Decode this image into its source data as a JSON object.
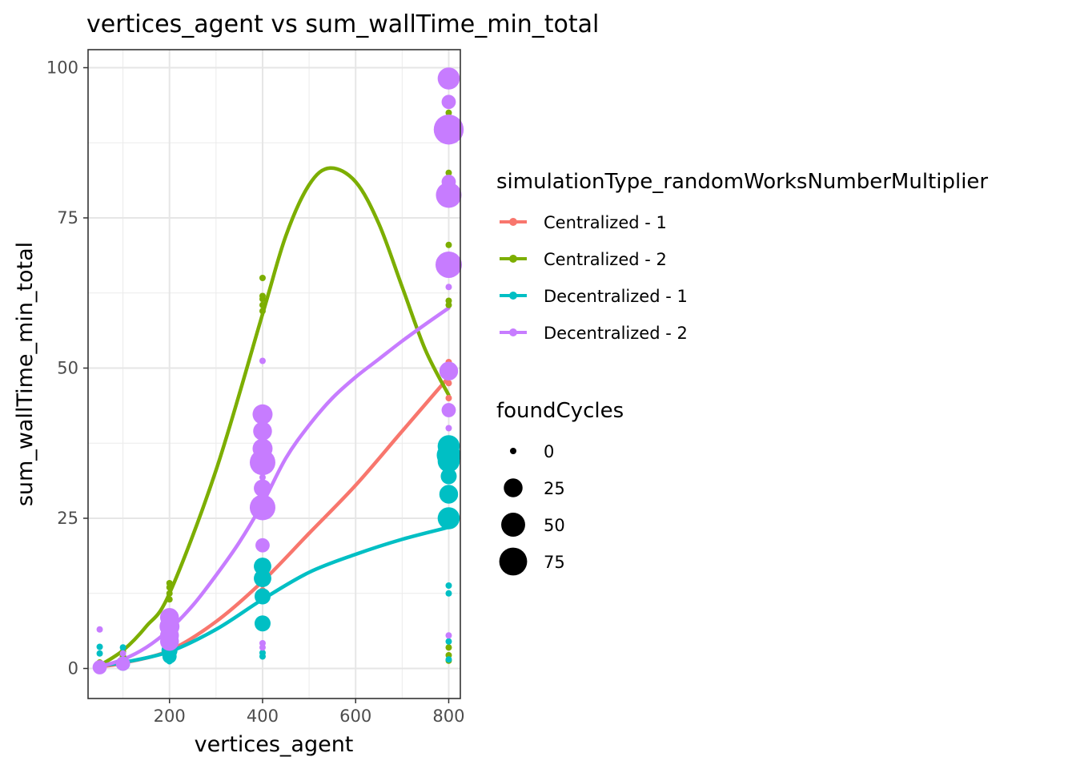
{
  "chart_data": {
    "type": "scatter",
    "title": "vertices_agent  vs  sum_wallTime_min_total",
    "xlabel": "vertices_agent",
    "ylabel": "sum_wallTime_min_total",
    "xlim": [
      25,
      825
    ],
    "ylim": [
      -5,
      103
    ],
    "xticks": [
      200,
      400,
      600,
      800
    ],
    "yticks": [
      0,
      25,
      50,
      75,
      100
    ],
    "grid": true,
    "color_legend": {
      "title": "simulationType_randomWorksNumberMultiplier",
      "placement": "right"
    },
    "size_legend": {
      "title": "foundCycles",
      "values": [
        0,
        25,
        50,
        75
      ]
    },
    "series": [
      {
        "name": "Centralized - 1",
        "color": "#F8766D",
        "points": [
          {
            "x": 50,
            "y": 0.4,
            "s": 0
          },
          {
            "x": 50,
            "y": 0.8,
            "s": 0
          },
          {
            "x": 100,
            "y": 1.5,
            "s": 0
          },
          {
            "x": 100,
            "y": 2.0,
            "s": 0
          },
          {
            "x": 200,
            "y": 2.8,
            "s": 0
          },
          {
            "x": 200,
            "y": 3.5,
            "s": 0
          },
          {
            "x": 200,
            "y": 4.2,
            "s": 0
          },
          {
            "x": 400,
            "y": 13.0,
            "s": 0
          },
          {
            "x": 400,
            "y": 14.0,
            "s": 0
          },
          {
            "x": 400,
            "y": 15.5,
            "s": 0
          },
          {
            "x": 400,
            "y": 16.5,
            "s": 0
          },
          {
            "x": 800,
            "y": 45.0,
            "s": 0
          },
          {
            "x": 800,
            "y": 47.5,
            "s": 0
          },
          {
            "x": 800,
            "y": 49.0,
            "s": 0
          },
          {
            "x": 800,
            "y": 50.0,
            "s": 0
          },
          {
            "x": 800,
            "y": 51.0,
            "s": 0
          }
        ],
        "curve": [
          [
            50,
            0.3
          ],
          [
            100,
            0.9
          ],
          [
            200,
            3.0
          ],
          [
            300,
            7.8
          ],
          [
            400,
            14.5
          ],
          [
            500,
            22.5
          ],
          [
            600,
            30.5
          ],
          [
            700,
            39.5
          ],
          [
            800,
            48.5
          ]
        ]
      },
      {
        "name": "Centralized - 2",
        "color": "#7CAE00",
        "points": [
          {
            "x": 50,
            "y": 0.5,
            "s": 0
          },
          {
            "x": 50,
            "y": 1.0,
            "s": 0
          },
          {
            "x": 100,
            "y": 2.0,
            "s": 0
          },
          {
            "x": 100,
            "y": 2.8,
            "s": 0
          },
          {
            "x": 200,
            "y": 11.5,
            "s": 0
          },
          {
            "x": 200,
            "y": 12.5,
            "s": 0
          },
          {
            "x": 200,
            "y": 13.5,
            "s": 0
          },
          {
            "x": 200,
            "y": 14.2,
            "s": 0
          },
          {
            "x": 400,
            "y": 59.5,
            "s": 0
          },
          {
            "x": 400,
            "y": 60.5,
            "s": 0
          },
          {
            "x": 400,
            "y": 61.5,
            "s": 0
          },
          {
            "x": 400,
            "y": 62.0,
            "s": 0
          },
          {
            "x": 400,
            "y": 65.0,
            "s": 0
          },
          {
            "x": 800,
            "y": 1.3,
            "s": 0
          },
          {
            "x": 800,
            "y": 2.2,
            "s": 0
          },
          {
            "x": 800,
            "y": 3.5,
            "s": 0
          },
          {
            "x": 800,
            "y": 60.5,
            "s": 0
          },
          {
            "x": 800,
            "y": 61.2,
            "s": 0
          },
          {
            "x": 800,
            "y": 70.5,
            "s": 0
          },
          {
            "x": 800,
            "y": 82.5,
            "s": 0
          },
          {
            "x": 800,
            "y": 91.0,
            "s": 0
          },
          {
            "x": 800,
            "y": 92.5,
            "s": 0
          }
        ],
        "curve": [
          [
            50,
            0.5
          ],
          [
            100,
            3.0
          ],
          [
            150,
            7.0
          ],
          [
            200,
            12.5
          ],
          [
            300,
            33.0
          ],
          [
            400,
            59.0
          ],
          [
            450,
            72.0
          ],
          [
            500,
            80.5
          ],
          [
            545,
            83.3
          ],
          [
            600,
            81.0
          ],
          [
            650,
            74.0
          ],
          [
            700,
            63.5
          ],
          [
            750,
            53.0
          ],
          [
            800,
            45.5
          ]
        ]
      },
      {
        "name": "Decentralized - 1",
        "color": "#00BFC4",
        "points": [
          {
            "x": 50,
            "y": 0.3,
            "s": 0
          },
          {
            "x": 50,
            "y": 2.5,
            "s": 0
          },
          {
            "x": 50,
            "y": 3.6,
            "s": 0
          },
          {
            "x": 100,
            "y": 0.8,
            "s": 10
          },
          {
            "x": 100,
            "y": 3.5,
            "s": 0
          },
          {
            "x": 200,
            "y": 1.2,
            "s": 0
          },
          {
            "x": 200,
            "y": 2.0,
            "s": 10
          },
          {
            "x": 200,
            "y": 3.0,
            "s": 15
          },
          {
            "x": 200,
            "y": 3.5,
            "s": 10
          },
          {
            "x": 400,
            "y": 2.0,
            "s": 0
          },
          {
            "x": 400,
            "y": 2.6,
            "s": 0
          },
          {
            "x": 400,
            "y": 7.5,
            "s": 15
          },
          {
            "x": 400,
            "y": 12.0,
            "s": 15
          },
          {
            "x": 400,
            "y": 15.0,
            "s": 20
          },
          {
            "x": 400,
            "y": 17.0,
            "s": 20
          },
          {
            "x": 800,
            "y": 1.5,
            "s": 0
          },
          {
            "x": 800,
            "y": 4.5,
            "s": 0
          },
          {
            "x": 800,
            "y": 12.5,
            "s": 0
          },
          {
            "x": 800,
            "y": 13.8,
            "s": 0
          },
          {
            "x": 800,
            "y": 25.0,
            "s": 40
          },
          {
            "x": 800,
            "y": 29.0,
            "s": 25
          },
          {
            "x": 800,
            "y": 32.0,
            "s": 15
          },
          {
            "x": 800,
            "y": 34.5,
            "s": 40
          },
          {
            "x": 800,
            "y": 35.5,
            "s": 50
          },
          {
            "x": 800,
            "y": 37.0,
            "s": 40
          }
        ],
        "curve": [
          [
            50,
            0.5
          ],
          [
            100,
            1.0
          ],
          [
            200,
            2.8
          ],
          [
            300,
            6.5
          ],
          [
            400,
            11.5
          ],
          [
            500,
            16.0
          ],
          [
            600,
            19.0
          ],
          [
            700,
            21.5
          ],
          [
            800,
            23.5
          ]
        ]
      },
      {
        "name": "Decentralized - 2",
        "color": "#C77CFF",
        "points": [
          {
            "x": 50,
            "y": 0.2,
            "s": 10
          },
          {
            "x": 50,
            "y": 6.5,
            "s": 0
          },
          {
            "x": 100,
            "y": 0.8,
            "s": 10
          },
          {
            "x": 100,
            "y": 2.5,
            "s": 0
          },
          {
            "x": 200,
            "y": 4.5,
            "s": 25
          },
          {
            "x": 200,
            "y": 5.5,
            "s": 25
          },
          {
            "x": 200,
            "y": 7.0,
            "s": 30
          },
          {
            "x": 200,
            "y": 8.5,
            "s": 25
          },
          {
            "x": 400,
            "y": 3.5,
            "s": 0
          },
          {
            "x": 400,
            "y": 4.2,
            "s": 0
          },
          {
            "x": 400,
            "y": 20.5,
            "s": 10
          },
          {
            "x": 400,
            "y": 26.8,
            "s": 60
          },
          {
            "x": 400,
            "y": 30.0,
            "s": 20
          },
          {
            "x": 400,
            "y": 31.8,
            "s": 0
          },
          {
            "x": 400,
            "y": 34.3,
            "s": 60
          },
          {
            "x": 400,
            "y": 36.6,
            "s": 30
          },
          {
            "x": 400,
            "y": 39.5,
            "s": 25
          },
          {
            "x": 400,
            "y": 42.3,
            "s": 30
          },
          {
            "x": 400,
            "y": 51.2,
            "s": 0
          },
          {
            "x": 800,
            "y": 5.5,
            "s": 0
          },
          {
            "x": 800,
            "y": 40.0,
            "s": 0
          },
          {
            "x": 800,
            "y": 43.0,
            "s": 10
          },
          {
            "x": 800,
            "y": 49.5,
            "s": 25
          },
          {
            "x": 800,
            "y": 63.5,
            "s": 0
          },
          {
            "x": 800,
            "y": 66.0,
            "s": 0
          },
          {
            "x": 800,
            "y": 67.2,
            "s": 65
          },
          {
            "x": 800,
            "y": 78.8,
            "s": 60
          },
          {
            "x": 800,
            "y": 81.0,
            "s": 10
          },
          {
            "x": 800,
            "y": 89.7,
            "s": 90
          },
          {
            "x": 800,
            "y": 94.3,
            "s": 10
          },
          {
            "x": 800,
            "y": 98.2,
            "s": 40
          }
        ],
        "curve": [
          [
            50,
            0.3
          ],
          [
            100,
            1.5
          ],
          [
            150,
            3.5
          ],
          [
            200,
            6.5
          ],
          [
            250,
            10.5
          ],
          [
            300,
            15.5
          ],
          [
            350,
            21.0
          ],
          [
            400,
            27.5
          ],
          [
            450,
            35.0
          ],
          [
            500,
            40.5
          ],
          [
            550,
            45.0
          ],
          [
            600,
            48.5
          ],
          [
            650,
            51.5
          ],
          [
            700,
            54.5
          ],
          [
            750,
            57.3
          ],
          [
            800,
            60.0
          ]
        ]
      }
    ]
  }
}
